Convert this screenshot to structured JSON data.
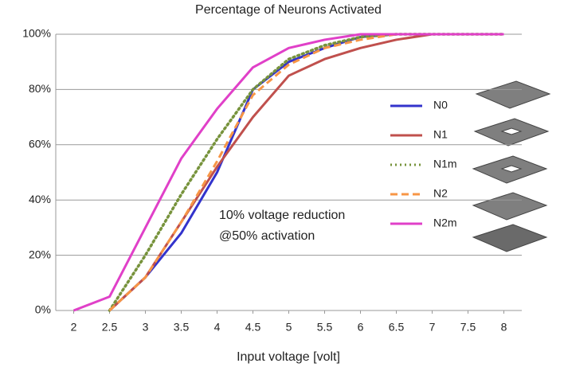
{
  "chart_data": {
    "type": "line",
    "title": "Percentage of Neurons Activated",
    "x_label": "Input voltage [volt]",
    "annotations": [
      "10% voltage reduction",
      "@50% activation"
    ],
    "x": [
      2,
      2.5,
      3,
      3.5,
      4,
      4.5,
      5,
      5.5,
      6,
      6.5,
      7,
      7.5,
      8
    ],
    "xlim": [
      1.75,
      8.25
    ],
    "xticks": [
      2,
      2.5,
      3,
      3.5,
      4,
      4.5,
      5,
      5.5,
      6,
      6.5,
      7,
      7.5,
      8
    ],
    "ylim": [
      0,
      100
    ],
    "yticks": [
      {
        "value": 0,
        "label": "0%"
      },
      {
        "value": 20,
        "label": "20%"
      },
      {
        "value": 40,
        "label": "40%"
      },
      {
        "value": 60,
        "label": "60%"
      },
      {
        "value": 80,
        "label": "80%"
      },
      {
        "value": 100,
        "label": "100%"
      }
    ],
    "grid": true,
    "series": [
      {
        "name": "N0",
        "color": "#3333cc",
        "dash": "solid",
        "values": [
          null,
          0,
          12,
          28,
          50,
          80,
          90,
          95,
          99,
          100,
          100,
          100,
          100
        ]
      },
      {
        "name": "N1",
        "color": "#c0504d",
        "dash": "solid",
        "values": [
          null,
          0,
          12,
          32,
          52,
          70,
          85,
          91,
          95,
          98,
          100,
          100,
          100
        ]
      },
      {
        "name": "N1m",
        "color": "#77933c",
        "dash": "dotted",
        "values": [
          null,
          0,
          20,
          42,
          62,
          80,
          91,
          96,
          99,
          100,
          100,
          100,
          100
        ]
      },
      {
        "name": "N2",
        "color": "#f79646",
        "dash": "dashed",
        "values": [
          null,
          0,
          12,
          32,
          54,
          78,
          89,
          95,
          98,
          100,
          100,
          100,
          100
        ]
      },
      {
        "name": "N2m",
        "color": "#e040c8",
        "dash": "solid",
        "values": [
          0,
          5,
          30,
          55,
          73,
          88,
          95,
          98,
          100,
          100,
          100,
          100,
          100
        ]
      }
    ]
  }
}
